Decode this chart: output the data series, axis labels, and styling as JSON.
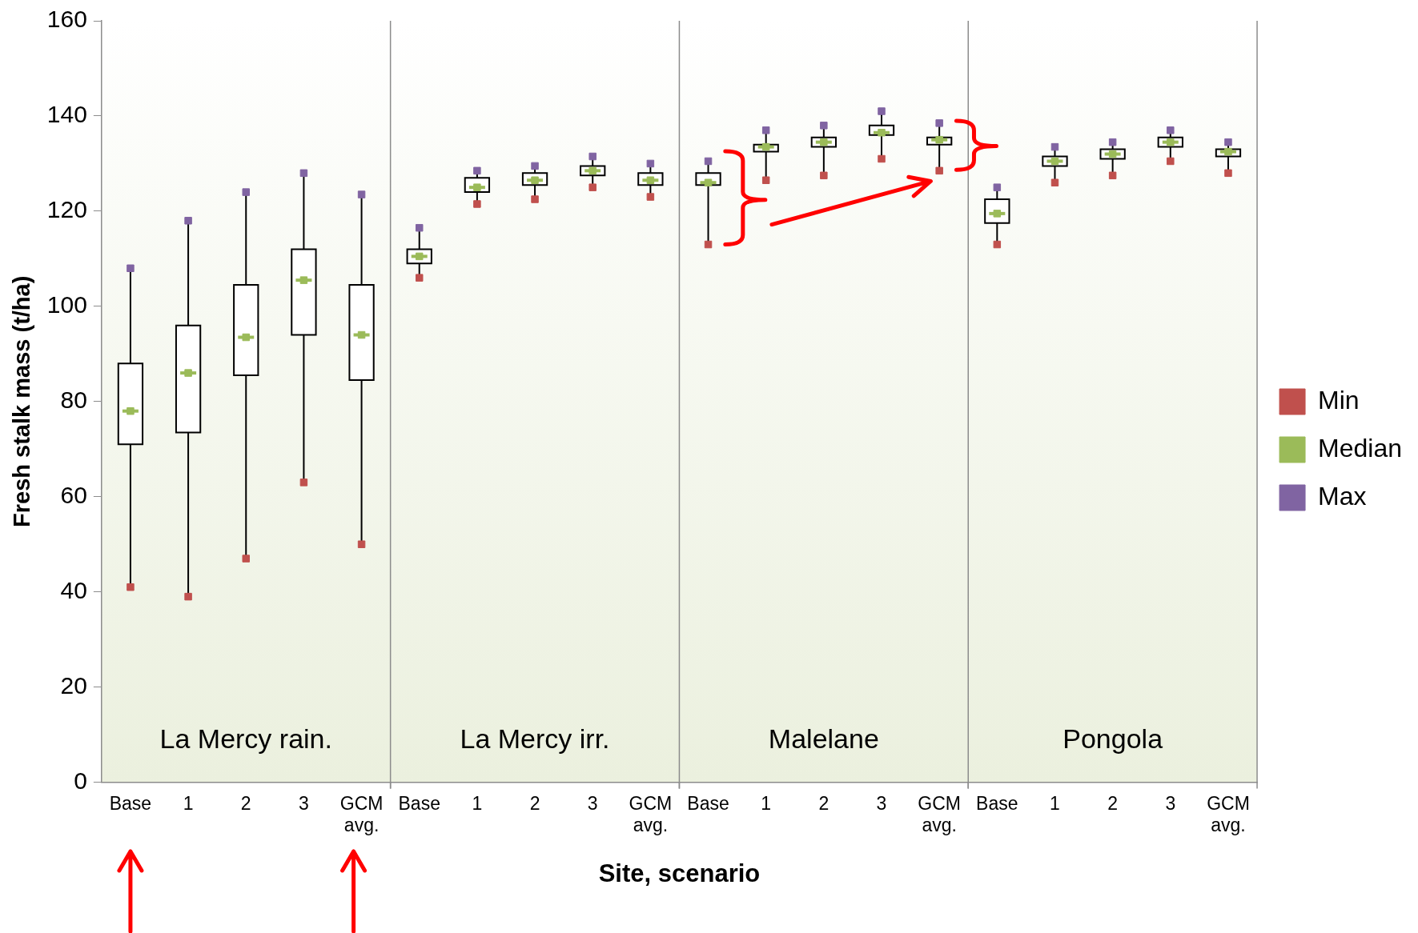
{
  "chart_data": {
    "type": "box",
    "xlabel": "Site, scenario",
    "ylabel": "Fresh stalk mass (t/ha)",
    "categories": [
      "Base",
      "1",
      "2",
      "3",
      "GCM avg.",
      "Base",
      "1",
      "2",
      "3",
      "GCM avg.",
      "Base",
      "1",
      "2",
      "3",
      "GCM avg.",
      "Base",
      "1",
      "2",
      "3",
      "GCM avg."
    ],
    "ylim": [
      0,
      160
    ],
    "yticks": [
      0,
      20,
      40,
      60,
      80,
      100,
      120,
      140,
      160
    ],
    "grid": false,
    "legend": "right",
    "marker": "square",
    "annotations": [
      "La Mercy rain.",
      "La Mercy irr.",
      "Malelane",
      "Pongola"
    ],
    "series": [
      {
        "type": "box",
        "color": "#ffffff",
        "boxes": [
          {
            "low": 41,
            "q1": 71,
            "median": 78,
            "q3": 88,
            "high": 108
          },
          {
            "low": 39,
            "q1": 73.5,
            "median": 86,
            "q3": 96,
            "high": 118
          },
          {
            "low": 47,
            "q1": 85.5,
            "median": 93.5,
            "q3": 104.5,
            "high": 124
          },
          {
            "low": 63,
            "q1": 94,
            "median": 105.5,
            "q3": 112,
            "high": 128
          },
          {
            "low": 50,
            "q1": 84.5,
            "median": 94,
            "q3": 104.5,
            "high": 123.5
          },
          {
            "low": 106,
            "q1": 109,
            "median": 110.5,
            "q3": 112,
            "high": 116.5
          },
          {
            "low": 121.5,
            "q1": 124,
            "median": 125,
            "q3": 127,
            "high": 128.5
          },
          {
            "low": 122.5,
            "q1": 125.5,
            "median": 126.5,
            "q3": 128,
            "high": 129.5
          },
          {
            "low": 125,
            "q1": 127.5,
            "median": 128.5,
            "q3": 129.5,
            "high": 131.5
          },
          {
            "low": 123,
            "q1": 125.5,
            "median": 126.5,
            "q3": 128,
            "high": 130
          },
          {
            "low": 113,
            "q1": 125.5,
            "median": 126,
            "q3": 128,
            "high": 130.5
          },
          {
            "low": 126.5,
            "q1": 132.5,
            "median": 133.5,
            "q3": 134,
            "high": 137
          },
          {
            "low": 127.5,
            "q1": 133.5,
            "median": 134.5,
            "q3": 135.5,
            "high": 138
          },
          {
            "low": 131,
            "q1": 136,
            "median": 136.5,
            "q3": 138,
            "high": 141
          },
          {
            "low": 128.5,
            "q1": 134,
            "median": 135,
            "q3": 135.5,
            "high": 138.5
          },
          {
            "low": 113,
            "q1": 117.5,
            "median": 119.5,
            "q3": 122.5,
            "high": 125
          },
          {
            "low": 126,
            "q1": 129.5,
            "median": 130.5,
            "q3": 131.5,
            "high": 133.5
          },
          {
            "low": 127.5,
            "q1": 131,
            "median": 132,
            "q3": 133,
            "high": 134.5
          },
          {
            "low": 130.5,
            "q1": 133.5,
            "median": 134.5,
            "q3": 135.5,
            "high": 137
          },
          {
            "low": 128,
            "q1": 131.5,
            "median": 132.5,
            "q3": 133,
            "high": 134.5
          }
        ]
      },
      {
        "name": "Min",
        "color": "#c0504d",
        "type": "scatter",
        "values": [
          41,
          39,
          47,
          63,
          50,
          106,
          121.5,
          122.5,
          125,
          123,
          113,
          126.5,
          127.5,
          131,
          128.5,
          113,
          126,
          127.5,
          130.5,
          128
        ]
      },
      {
        "name": "Median",
        "color": "#9bbb59",
        "type": "scatter",
        "values": [
          78,
          86,
          93.5,
          105.5,
          94,
          110.5,
          125,
          126.5,
          128.5,
          126.5,
          126,
          133.5,
          134.5,
          136.5,
          135,
          119.5,
          130.5,
          132,
          134.5,
          132.5
        ]
      },
      {
        "name": "Max",
        "color": "#8064a2",
        "type": "scatter",
        "values": [
          108,
          118,
          124,
          128,
          123.5,
          116.5,
          128.5,
          129.5,
          131.5,
          130,
          130.5,
          137,
          138,
          141,
          138.5,
          125,
          133.5,
          134.5,
          137,
          134.5
        ]
      }
    ]
  }
}
